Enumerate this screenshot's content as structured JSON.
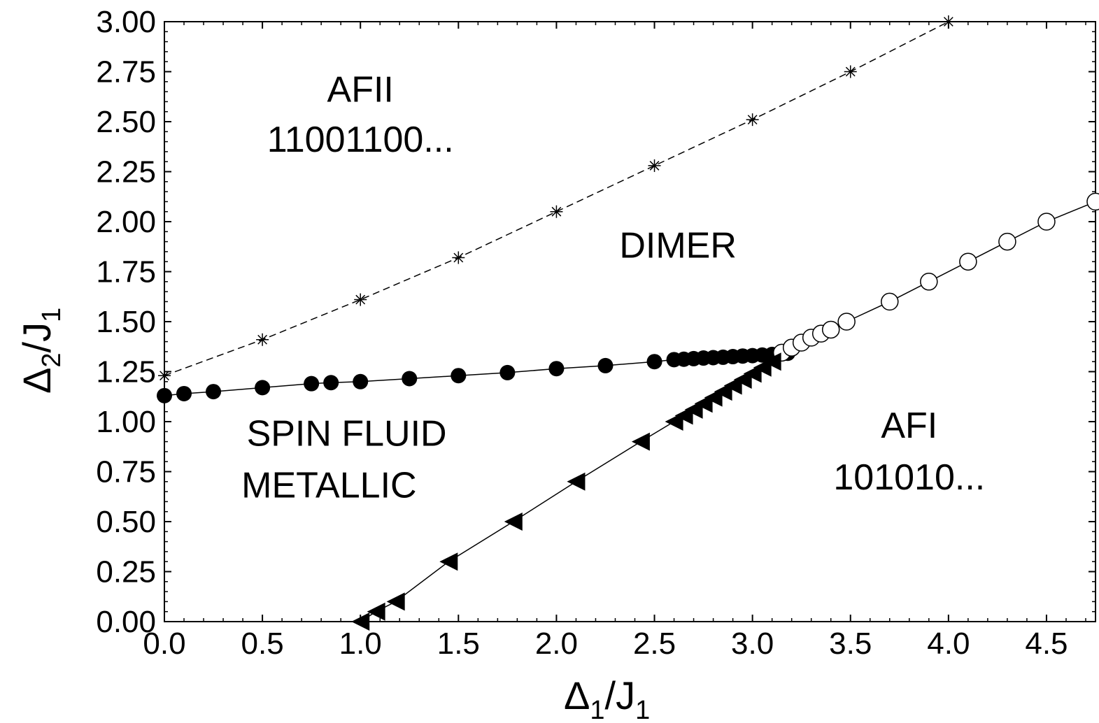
{
  "chart_data": {
    "type": "scatter",
    "title": "",
    "xlabel": {
      "symbol": "Δ",
      "sub1": "1",
      "slash": "/J",
      "sub2": "1"
    },
    "ylabel": {
      "symbol": "Δ",
      "sub1": "2",
      "slash": "/J",
      "sub2": "1"
    },
    "xlim": [
      0.0,
      4.75
    ],
    "ylim": [
      0.0,
      3.0
    ],
    "x_ticks": [
      "0.0",
      "0.5",
      "1.0",
      "1.5",
      "2.0",
      "2.5",
      "3.0",
      "3.5",
      "4.0",
      "4.5"
    ],
    "y_ticks": [
      "0.00",
      "0.25",
      "0.50",
      "0.75",
      "1.00",
      "1.25",
      "1.50",
      "1.75",
      "2.00",
      "2.25",
      "2.50",
      "2.75",
      "3.00"
    ],
    "grid": false,
    "legend": "none",
    "annotations": [
      {
        "text": "AFII",
        "x": 1.0,
        "y": 2.6
      },
      {
        "text": "11001100...",
        "x": 1.0,
        "y": 2.35
      },
      {
        "text": "DIMER",
        "x": 2.62,
        "y": 1.82
      },
      {
        "text": "SPIN FLUID",
        "x": 0.93,
        "y": 0.88
      },
      {
        "text": "METALLIC",
        "x": 0.84,
        "y": 0.62
      },
      {
        "text": "AFI",
        "x": 3.8,
        "y": 0.92
      },
      {
        "text": "101010...",
        "x": 3.8,
        "y": 0.66
      }
    ],
    "series": [
      {
        "marker": "asterisk",
        "line": "dashed",
        "x": [
          0.0,
          0.5,
          1.0,
          1.5,
          2.0,
          2.5,
          3.0,
          3.5,
          4.0
        ],
        "y": [
          1.23,
          1.41,
          1.61,
          1.82,
          2.05,
          2.28,
          2.51,
          2.75,
          3.0
        ]
      },
      {
        "marker": "filled-circle",
        "line": "solid",
        "x": [
          0.0,
          0.1,
          0.25,
          0.5,
          0.75,
          0.85,
          1.0,
          1.25,
          1.5,
          1.75,
          2.0,
          2.25,
          2.5,
          2.6,
          2.65,
          2.7,
          2.75,
          2.8,
          2.85,
          2.9,
          2.95,
          3.0,
          3.05,
          3.1,
          3.15,
          3.18
        ],
        "y": [
          1.13,
          1.14,
          1.15,
          1.17,
          1.19,
          1.195,
          1.2,
          1.215,
          1.23,
          1.245,
          1.265,
          1.28,
          1.3,
          1.31,
          1.312,
          1.315,
          1.318,
          1.32,
          1.322,
          1.325,
          1.328,
          1.33,
          1.333,
          1.336,
          1.34,
          1.342
        ]
      },
      {
        "marker": "open-circle",
        "line": "solid",
        "x": [
          3.15,
          3.2,
          3.25,
          3.3,
          3.35,
          3.4,
          3.48,
          3.7,
          3.9,
          4.1,
          4.3,
          4.5,
          4.75
        ],
        "y": [
          1.345,
          1.37,
          1.395,
          1.42,
          1.44,
          1.46,
          1.5,
          1.6,
          1.7,
          1.8,
          1.9,
          2.0,
          2.1
        ]
      },
      {
        "marker": "filled-left-triangle",
        "line": "solid",
        "x": [
          1.0,
          1.08,
          1.18,
          1.45,
          1.78,
          2.1,
          2.43,
          2.6,
          2.65,
          2.7,
          2.75,
          2.8,
          2.85,
          2.9,
          2.95,
          3.0,
          3.05,
          3.1
        ],
        "y": [
          0.0,
          0.05,
          0.1,
          0.3,
          0.5,
          0.7,
          0.9,
          1.0,
          1.03,
          1.06,
          1.09,
          1.12,
          1.15,
          1.18,
          1.21,
          1.24,
          1.27,
          1.3
        ]
      }
    ]
  }
}
